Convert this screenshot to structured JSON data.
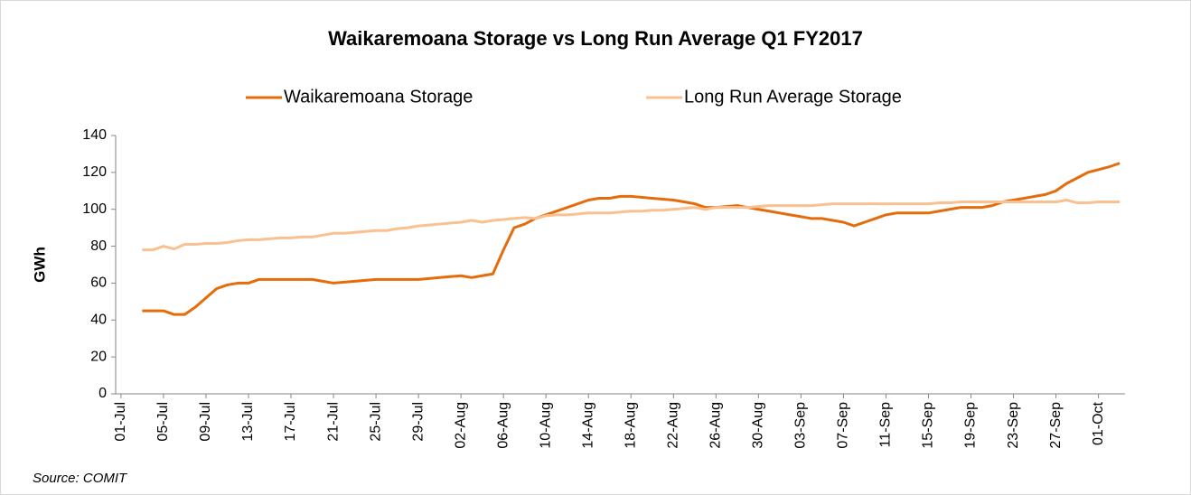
{
  "chart_data": {
    "type": "line",
    "title": "Waikaremoana Storage vs Long Run Average Q1 FY2017",
    "y_label": "GWh",
    "annotation": "Source: COMIT",
    "categories": [
      "01-Jul",
      null,
      null,
      null,
      "05-Jul",
      null,
      null,
      null,
      "09-Jul",
      null,
      null,
      null,
      "13-Jul",
      null,
      null,
      null,
      "17-Jul",
      null,
      null,
      null,
      "21-Jul",
      null,
      null,
      null,
      "25-Jul",
      null,
      null,
      null,
      "29-Jul",
      null,
      null,
      null,
      "02-Aug",
      null,
      null,
      null,
      "06-Aug",
      null,
      null,
      null,
      "10-Aug",
      null,
      null,
      null,
      "14-Aug",
      null,
      null,
      null,
      "18-Aug",
      null,
      null,
      null,
      "22-Aug",
      null,
      null,
      null,
      "26-Aug",
      null,
      null,
      null,
      "30-Aug",
      null,
      null,
      null,
      "03-Sep",
      null,
      null,
      null,
      "07-Sep",
      null,
      null,
      null,
      "11-Sep",
      null,
      null,
      null,
      "15-Sep",
      null,
      null,
      null,
      "19-Sep",
      null,
      null,
      null,
      "23-Sep",
      null,
      null,
      null,
      "27-Sep",
      null,
      null,
      null,
      "01-Oct",
      null,
      null
    ],
    "series": [
      {
        "name": "Waikaremoana Storage",
        "color": "#e46c0a",
        "values": [
          null,
          null,
          45,
          45,
          45,
          43,
          43,
          47,
          52,
          57,
          59,
          60,
          60,
          62,
          62,
          62,
          62,
          62,
          62,
          61,
          60,
          60.5,
          61,
          61.5,
          62,
          62,
          62,
          62,
          62,
          62.5,
          63,
          63.5,
          64,
          63,
          64,
          65,
          78,
          90,
          92,
          95,
          97,
          99,
          101,
          103,
          105,
          106,
          106,
          107,
          107,
          106.5,
          106,
          105.5,
          105,
          104,
          103,
          101,
          101,
          101.5,
          102,
          101,
          100,
          99,
          98,
          97,
          96,
          95,
          95,
          94,
          93,
          91,
          93,
          95,
          97,
          98,
          98,
          98,
          98,
          99,
          100,
          101,
          101,
          101,
          102,
          104,
          105,
          106,
          107,
          108,
          110,
          114,
          117,
          120,
          121.5,
          123,
          125
        ]
      },
      {
        "name": "Long Run Average Storage",
        "color": "#fac090",
        "values": [
          null,
          null,
          78,
          78,
          80,
          78.5,
          81,
          81,
          81.5,
          81.5,
          82,
          83,
          83.5,
          83.5,
          84,
          84.5,
          84.5,
          85,
          85,
          86,
          87,
          87,
          87.5,
          88,
          88.5,
          88.5,
          89.5,
          90,
          91,
          91.5,
          92,
          92.5,
          93,
          94,
          93,
          94,
          94.5,
          95,
          95.5,
          95,
          96.5,
          97,
          97,
          97.5,
          98,
          98,
          98,
          98.5,
          99,
          99,
          99.5,
          99.5,
          100,
          100.5,
          101,
          100,
          101,
          101,
          101,
          101,
          101.5,
          102,
          102,
          102,
          102,
          102,
          102.5,
          103,
          103,
          103,
          103,
          103,
          103,
          103,
          103,
          103,
          103,
          103.5,
          103.5,
          104,
          104,
          104,
          104,
          104,
          104,
          104,
          104,
          104,
          104,
          105,
          103.5,
          103.5,
          104,
          104,
          104
        ]
      }
    ],
    "ylim": [
      0,
      140
    ],
    "yticks": [
      0,
      20,
      40,
      60,
      80,
      100,
      120,
      140
    ],
    "grid": false
  }
}
